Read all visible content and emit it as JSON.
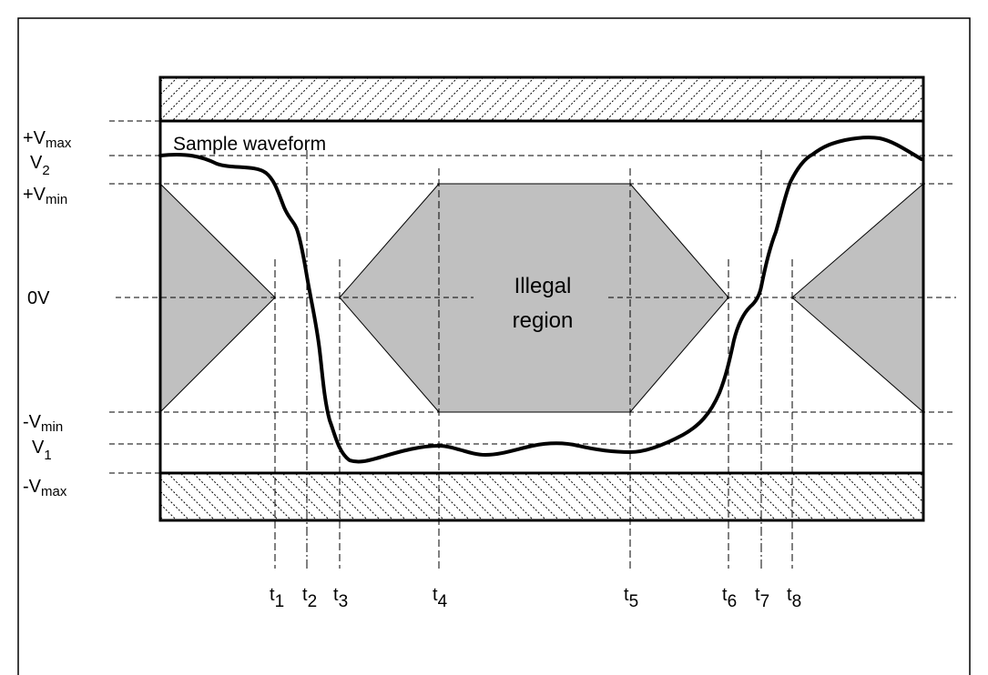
{
  "diagram": {
    "voltage_labels": {
      "vmax_pos": {
        "main": "+V",
        "sub": "max"
      },
      "v2": {
        "main": "V",
        "sub": "2"
      },
      "vmin_pos": {
        "main": "+V",
        "sub": "min"
      },
      "zero": {
        "main": "0V",
        "sub": ""
      },
      "vmin_neg": {
        "main": "-V",
        "sub": "min"
      },
      "v1": {
        "main": "V",
        "sub": "1"
      },
      "vmax_neg": {
        "main": "-V",
        "sub": "max"
      }
    },
    "waveform_label": "Sample waveform",
    "illegal_region_line1": "Illegal",
    "illegal_region_line2": "region",
    "time_labels": [
      {
        "main": "t",
        "sub": "1"
      },
      {
        "main": "t",
        "sub": "2"
      },
      {
        "main": "t",
        "sub": "3"
      },
      {
        "main": "t",
        "sub": "4"
      },
      {
        "main": "t",
        "sub": "5"
      },
      {
        "main": "t",
        "sub": "6"
      },
      {
        "main": "t",
        "sub": "7"
      },
      {
        "main": "t",
        "sub": "8"
      }
    ],
    "colors": {
      "illegal_fill": "#c0c0c0",
      "line": "#000000",
      "background": "#ffffff"
    }
  }
}
